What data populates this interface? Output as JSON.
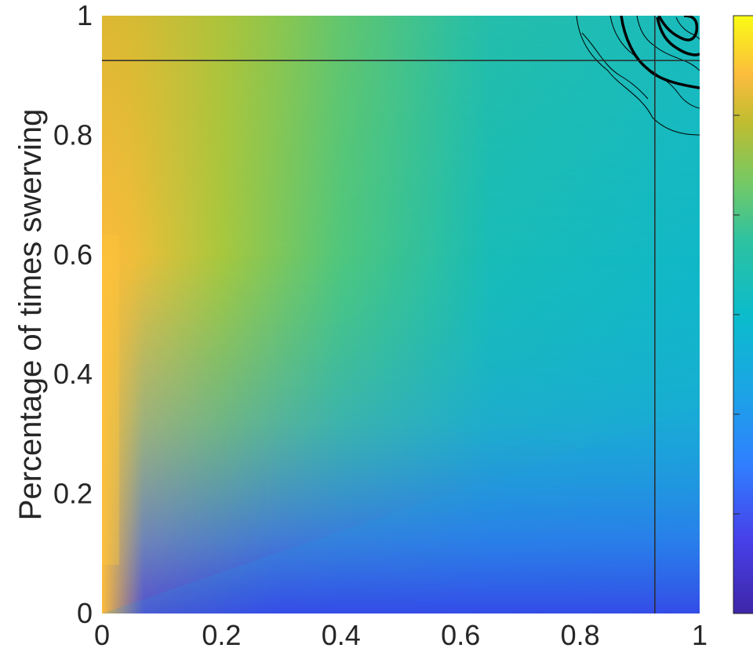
{
  "chart_data": {
    "type": "heatmap",
    "title": "",
    "xlabel": "",
    "ylabel": "Percentage of times swerving",
    "xlim": [
      0,
      1
    ],
    "ylim": [
      0,
      1
    ],
    "xticks": [
      "0",
      "0.2",
      "0.4",
      "0.6",
      "0.8",
      "1"
    ],
    "yticks": [
      "0",
      "0.2",
      "0.4",
      "0.6",
      "0.8",
      "1"
    ],
    "xtick_values": [
      0,
      0.2,
      0.4,
      0.6,
      0.8,
      1
    ],
    "ytick_values": [
      0,
      0.2,
      0.4,
      0.6,
      0.8,
      1
    ],
    "colormap": "parula",
    "colorbar": {
      "location": "right",
      "tick_labels_visible": false
    },
    "crosshair": {
      "x": 0.925,
      "y": 0.925
    },
    "contours": {
      "region": "upper-right corner (x > 0.78, y > 0.78)",
      "line_color": "#000000"
    },
    "grid": false,
    "colors": {
      "low": "#3e26a8",
      "blue": "#2f80ff",
      "cyan": "#0bbccb",
      "teal": "#2ec2a0",
      "green": "#74c965",
      "yellow_green": "#bebd30",
      "orange": "#fcbc3d",
      "high": "#f9fb15"
    }
  }
}
